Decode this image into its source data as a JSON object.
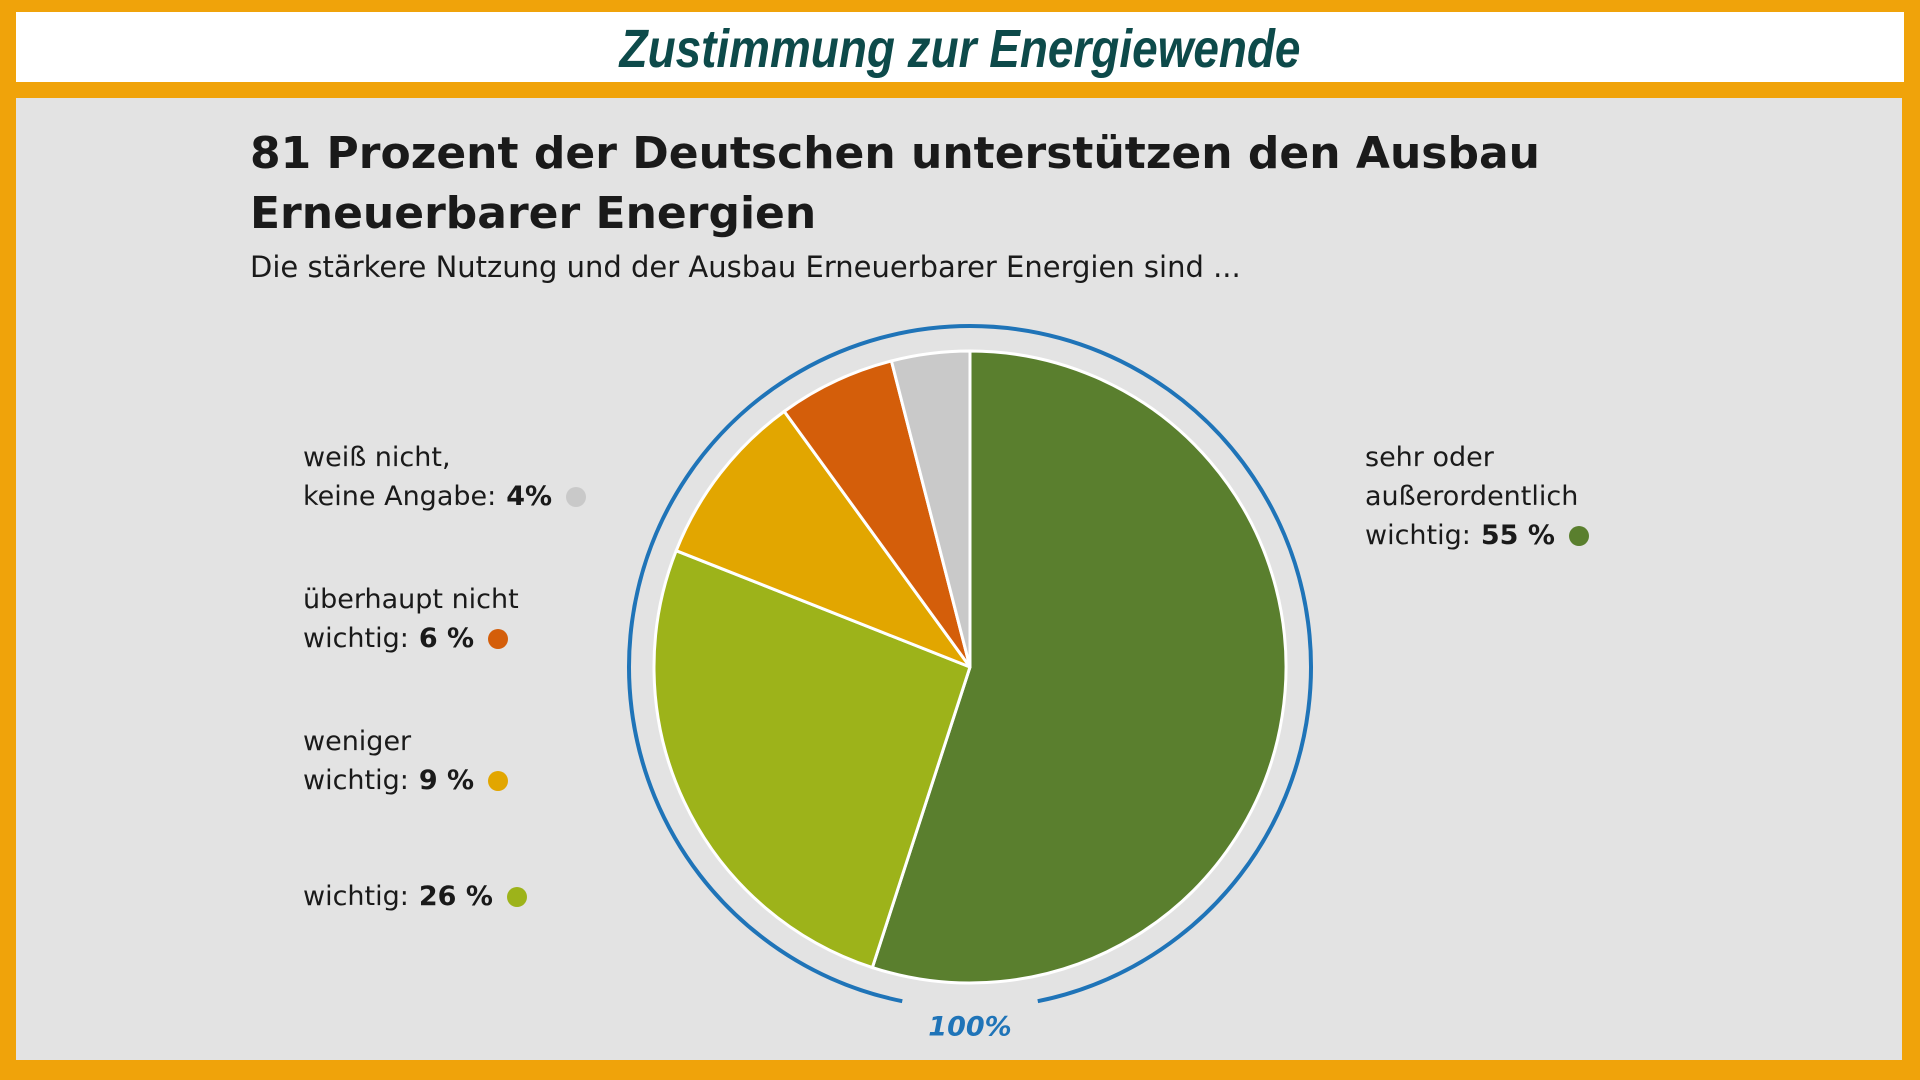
{
  "page_title": "Zustimmung zur Energiewende",
  "chart_data": {
    "type": "pie",
    "title": "81 Prozent der Deutschen unterstützen den Ausbau\nErneuerbarer Energien",
    "subtitle": "Die stärkere Nutzung und der Ausbau Erneuerbarer Energien sind ...",
    "categories": [
      "sehr oder\naußerordentlich\nwichtig:",
      "wichtig:",
      "weniger\nwichtig:",
      "überhaupt nicht\nwichtig:",
      "weiß nicht,\nkeine Angabe:"
    ],
    "values": [
      55,
      26,
      9,
      6,
      4
    ],
    "value_labels": [
      "55 %",
      "26 %",
      "9 %",
      "6 %",
      "4%"
    ],
    "colors": [
      "#5a7f2e",
      "#9db31a",
      "#e2a600",
      "#d45e0a",
      "#c9c9c9"
    ],
    "total_label": "100%",
    "ring_color": "#1f74b8"
  }
}
